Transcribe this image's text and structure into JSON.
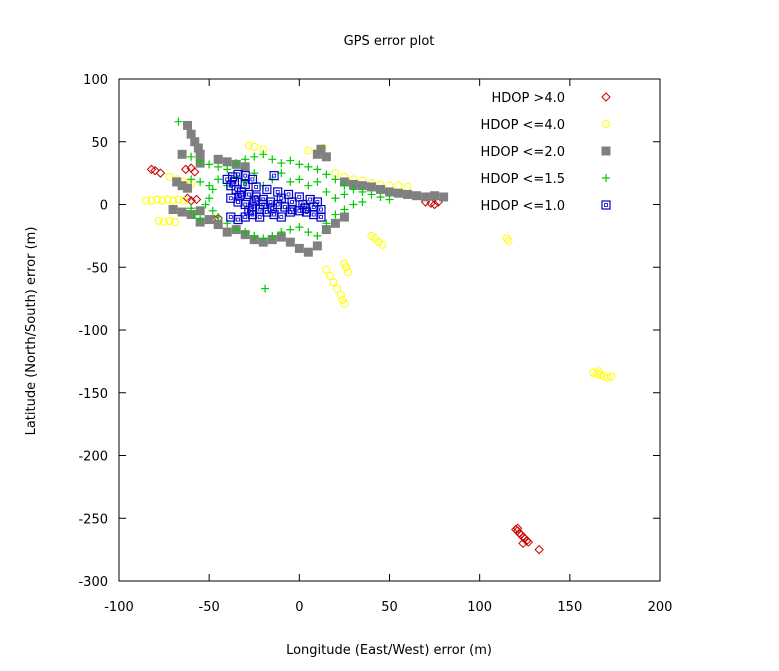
{
  "chart_data": {
    "type": "scatter",
    "title": "GPS error plot",
    "xlabel": "Longitude (East/West) error (m)",
    "ylabel": "Latitude (North/South) error (m)",
    "xlim": [
      -100,
      200
    ],
    "ylim": [
      -300,
      100
    ],
    "xticks": [
      -100,
      -50,
      0,
      50,
      100,
      150,
      200
    ],
    "yticks": [
      100,
      50,
      0,
      -50,
      -100,
      -150,
      -200,
      -250,
      -300
    ],
    "xtick_labels": [
      "-100",
      "-50",
      "0",
      "50",
      "100",
      "150",
      "200"
    ],
    "ytick_labels": [
      "100",
      "50",
      "0",
      "-50",
      "-100",
      "-150",
      "-200",
      "-250",
      "-300"
    ],
    "grid": false,
    "legend_position": "top-right",
    "series": [
      {
        "name": "HDOP >4.0",
        "color": "#cc0000",
        "marker": "diamond",
        "points": [
          [
            -82,
            28
          ],
          [
            -80,
            27
          ],
          [
            -77,
            25
          ],
          [
            -63,
            28
          ],
          [
            -60,
            29
          ],
          [
            -58,
            26
          ],
          [
            -62,
            5
          ],
          [
            -57,
            4
          ],
          [
            -60,
            3
          ],
          [
            -47,
            -12
          ],
          [
            -45,
            -11
          ],
          [
            70,
            2
          ],
          [
            73,
            1
          ],
          [
            75,
            0
          ],
          [
            77,
            2
          ],
          [
            120,
            -259
          ],
          [
            121,
            -260
          ],
          [
            122,
            -262
          ],
          [
            123,
            -263
          ],
          [
            124,
            -265
          ],
          [
            125,
            -266
          ],
          [
            126,
            -268
          ],
          [
            127,
            -269
          ],
          [
            124,
            -270
          ],
          [
            121,
            -258
          ],
          [
            133,
            -275
          ]
        ]
      },
      {
        "name": "HDOP <=4.0",
        "color": "#ffff00",
        "marker": "circle",
        "points": [
          [
            -85,
            3
          ],
          [
            -82,
            3
          ],
          [
            -79,
            4
          ],
          [
            -76,
            3
          ],
          [
            -73,
            4
          ],
          [
            -70,
            3
          ],
          [
            -67,
            4
          ],
          [
            -64,
            3
          ],
          [
            -78,
            -13
          ],
          [
            -75,
            -14
          ],
          [
            -72,
            -13
          ],
          [
            -69,
            -14
          ],
          [
            -72,
            22
          ],
          [
            -68,
            20
          ],
          [
            -64,
            18
          ],
          [
            -60,
            16
          ],
          [
            -28,
            47
          ],
          [
            -25,
            46
          ],
          [
            -20,
            44
          ],
          [
            5,
            43
          ],
          [
            10,
            42
          ],
          [
            13,
            45
          ],
          [
            20,
            25
          ],
          [
            25,
            22
          ],
          [
            30,
            20
          ],
          [
            35,
            19
          ],
          [
            40,
            17
          ],
          [
            45,
            16
          ],
          [
            50,
            15
          ],
          [
            55,
            15
          ],
          [
            60,
            14
          ],
          [
            25,
            -47
          ],
          [
            26,
            -50
          ],
          [
            27,
            -54
          ],
          [
            15,
            -52
          ],
          [
            17,
            -57
          ],
          [
            19,
            -62
          ],
          [
            21,
            -67
          ],
          [
            23,
            -72
          ],
          [
            24,
            -76
          ],
          [
            25,
            -79
          ],
          [
            40,
            -25
          ],
          [
            42,
            -27
          ],
          [
            44,
            -30
          ],
          [
            46,
            -32
          ],
          [
            115,
            -27
          ],
          [
            116,
            -29
          ],
          [
            163,
            -134
          ],
          [
            165,
            -135
          ],
          [
            167,
            -136
          ],
          [
            169,
            -137
          ],
          [
            171,
            -138
          ],
          [
            173,
            -137
          ],
          [
            166,
            -133
          ]
        ]
      },
      {
        "name": "HDOP <=2.0",
        "color": "#808080",
        "marker": "square",
        "points": [
          [
            -62,
            63
          ],
          [
            -60,
            56
          ],
          [
            -58,
            50
          ],
          [
            -56,
            45
          ],
          [
            -55,
            40
          ],
          [
            -65,
            40
          ],
          [
            -55,
            33
          ],
          [
            -45,
            36
          ],
          [
            -40,
            34
          ],
          [
            -35,
            32
          ],
          [
            -30,
            30
          ],
          [
            -68,
            18
          ],
          [
            -65,
            15
          ],
          [
            -62,
            13
          ],
          [
            -55,
            -14
          ],
          [
            -50,
            -12
          ],
          [
            -45,
            -16
          ],
          [
            -40,
            -22
          ],
          [
            -35,
            -20
          ],
          [
            -30,
            -24
          ],
          [
            -25,
            -28
          ],
          [
            -20,
            -30
          ],
          [
            -15,
            -28
          ],
          [
            -10,
            -26
          ],
          [
            -5,
            -30
          ],
          [
            0,
            -35
          ],
          [
            5,
            -38
          ],
          [
            10,
            -33
          ],
          [
            15,
            -20
          ],
          [
            20,
            -15
          ],
          [
            25,
            -10
          ],
          [
            10,
            40
          ],
          [
            12,
            44
          ],
          [
            15,
            38
          ],
          [
            25,
            18
          ],
          [
            30,
            16
          ],
          [
            35,
            15
          ],
          [
            40,
            14
          ],
          [
            45,
            12
          ],
          [
            50,
            10
          ],
          [
            55,
            9
          ],
          [
            60,
            8
          ],
          [
            65,
            7
          ],
          [
            70,
            6
          ],
          [
            75,
            7
          ],
          [
            80,
            6
          ],
          [
            -70,
            -4
          ],
          [
            -65,
            -6
          ],
          [
            -60,
            -8
          ],
          [
            -55,
            -5
          ]
        ]
      },
      {
        "name": "HDOP <=1.5",
        "color": "#00cc00",
        "marker": "plus",
        "points": [
          [
            -67,
            66
          ],
          [
            -60,
            38
          ],
          [
            -55,
            35
          ],
          [
            -50,
            32
          ],
          [
            -45,
            30
          ],
          [
            -40,
            28
          ],
          [
            -35,
            33
          ],
          [
            -30,
            36
          ],
          [
            -25,
            38
          ],
          [
            -20,
            40
          ],
          [
            -15,
            36
          ],
          [
            -10,
            33
          ],
          [
            -5,
            35
          ],
          [
            0,
            32
          ],
          [
            5,
            30
          ],
          [
            10,
            28
          ],
          [
            15,
            24
          ],
          [
            20,
            20
          ],
          [
            25,
            15
          ],
          [
            30,
            12
          ],
          [
            35,
            10
          ],
          [
            40,
            8
          ],
          [
            45,
            6
          ],
          [
            50,
            4
          ],
          [
            -60,
            20
          ],
          [
            -55,
            18
          ],
          [
            -50,
            15
          ],
          [
            -48,
            12
          ],
          [
            -50,
            5
          ],
          [
            -52,
            0
          ],
          [
            -48,
            -5
          ],
          [
            -45,
            -10
          ],
          [
            -40,
            -15
          ],
          [
            -35,
            -20
          ],
          [
            -30,
            -22
          ],
          [
            -25,
            -25
          ],
          [
            -20,
            -27
          ],
          [
            -15,
            -25
          ],
          [
            -10,
            -22
          ],
          [
            -5,
            -20
          ],
          [
            0,
            -18
          ],
          [
            5,
            -22
          ],
          [
            10,
            -25
          ],
          [
            15,
            -15
          ],
          [
            20,
            -8
          ],
          [
            25,
            -4
          ],
          [
            30,
            0
          ],
          [
            35,
            2
          ],
          [
            -45,
            20
          ],
          [
            -40,
            15
          ],
          [
            -35,
            22
          ],
          [
            -30,
            18
          ],
          [
            -25,
            25
          ],
          [
            -20,
            15
          ],
          [
            -15,
            20
          ],
          [
            -10,
            25
          ],
          [
            -5,
            18
          ],
          [
            0,
            20
          ],
          [
            5,
            15
          ],
          [
            10,
            18
          ],
          [
            15,
            10
          ],
          [
            20,
            5
          ],
          [
            25,
            8
          ],
          [
            -60,
            -3
          ],
          [
            -58,
            -8
          ],
          [
            -55,
            -12
          ],
          [
            -19,
            -67
          ]
        ]
      },
      {
        "name": "HDOP <=1.0",
        "color": "#0000cc",
        "marker": "square-open",
        "points": [
          [
            -40,
            20
          ],
          [
            -37,
            22
          ],
          [
            -34,
            24
          ],
          [
            -30,
            23
          ],
          [
            -26,
            20
          ],
          [
            -14,
            23
          ],
          [
            -38,
            15
          ],
          [
            -35,
            12
          ],
          [
            -32,
            10
          ],
          [
            -28,
            8
          ],
          [
            -24,
            6
          ],
          [
            -20,
            4
          ],
          [
            -16,
            2
          ],
          [
            -12,
            0
          ],
          [
            -8,
            -2
          ],
          [
            -4,
            -4
          ],
          [
            0,
            -5
          ],
          [
            4,
            -6
          ],
          [
            8,
            -8
          ],
          [
            12,
            -10
          ],
          [
            -38,
            5
          ],
          [
            -34,
            2
          ],
          [
            -30,
            0
          ],
          [
            -26,
            -2
          ],
          [
            -22,
            -4
          ],
          [
            -18,
            -6
          ],
          [
            -14,
            -8
          ],
          [
            -10,
            -10
          ],
          [
            -38,
            -10
          ],
          [
            -34,
            -12
          ],
          [
            -30,
            -10
          ],
          [
            -26,
            -8
          ],
          [
            -22,
            -10
          ],
          [
            -36,
            18
          ],
          [
            -30,
            16
          ],
          [
            -24,
            14
          ],
          [
            -18,
            12
          ],
          [
            -12,
            10
          ],
          [
            -6,
            8
          ],
          [
            0,
            6
          ],
          [
            6,
            4
          ],
          [
            10,
            2
          ],
          [
            -28,
            -5
          ],
          [
            -20,
            0
          ],
          [
            -10,
            5
          ],
          [
            -4,
            2
          ],
          [
            2,
            0
          ],
          [
            8,
            -2
          ],
          [
            12,
            -4
          ],
          [
            -33,
            7
          ],
          [
            -25,
            3
          ],
          [
            -15,
            -3
          ],
          [
            -5,
            -6
          ],
          [
            3,
            -3
          ]
        ]
      }
    ]
  }
}
